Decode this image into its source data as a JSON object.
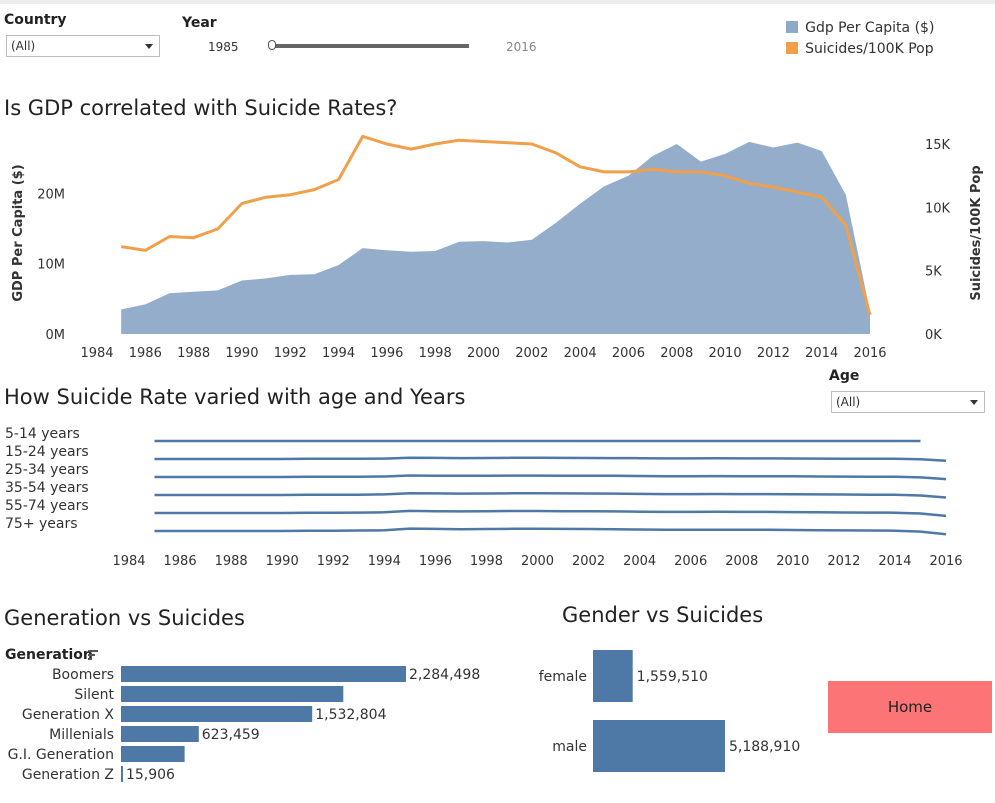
{
  "filters": {
    "country": {
      "label": "Country",
      "value": "(All)"
    },
    "year": {
      "label": "Year",
      "min_label": "1985",
      "max_label": "2016"
    },
    "age": {
      "label": "Age",
      "value": "(All)"
    }
  },
  "legend": [
    {
      "label": "Gdp Per Capita ($)",
      "color": "#8ea9c8"
    },
    {
      "label": "Suicides/100K Pop",
      "color": "#f0a04b"
    }
  ],
  "titles": {
    "gdp_chart": "Is GDP correlated with Suicide Rates?",
    "age_chart": "How Suicide Rate varied with age and Years",
    "generation_chart": "Generation vs Suicides",
    "gender_chart": "Gender vs Suicides"
  },
  "home_button": "Home",
  "chart_data": [
    {
      "type": "area",
      "title": "Is GDP correlated with Suicide Rates?",
      "x": [
        1985,
        1986,
        1987,
        1988,
        1989,
        1990,
        1991,
        1992,
        1993,
        1994,
        1995,
        1996,
        1997,
        1998,
        1999,
        2000,
        2001,
        2002,
        2003,
        2004,
        2005,
        2006,
        2007,
        2008,
        2009,
        2010,
        2011,
        2012,
        2013,
        2014,
        2015,
        2016
      ],
      "xticks": [
        "1984",
        "1986",
        "1988",
        "1990",
        "1992",
        "1994",
        "1996",
        "1998",
        "2000",
        "2002",
        "2004",
        "2006",
        "2008",
        "2010",
        "2012",
        "2014",
        "2016"
      ],
      "xlim": [
        1984,
        2016
      ],
      "ylabel": "GDP Per Capita ($)",
      "ylabel_right": "Suicides/100K Pop",
      "ylim": [
        0,
        27000000
      ],
      "ylim_right": [
        0,
        15000
      ],
      "yticks_left": [
        {
          "v": 0,
          "label": "0M"
        },
        {
          "v": 10000000,
          "label": "10M"
        },
        {
          "v": 20000000,
          "label": "20M"
        }
      ],
      "yticks_right": [
        {
          "v": 0,
          "label": "0K"
        },
        {
          "v": 5000,
          "label": "5K"
        },
        {
          "v": 10000,
          "label": "10K"
        },
        {
          "v": 15000,
          "label": "15K"
        }
      ],
      "series": [
        {
          "name": "Gdp Per Capita ($)",
          "axis": "left",
          "kind": "area",
          "color": "#8ea9c8",
          "values": [
            3500000,
            4200000,
            5800000,
            6000000,
            6200000,
            7600000,
            7900000,
            8400000,
            8500000,
            9800000,
            12200000,
            11900000,
            11700000,
            11800000,
            13100000,
            13200000,
            13000000,
            13400000,
            15800000,
            18500000,
            21000000,
            22500000,
            25300000,
            27000000,
            24500000,
            25600000,
            27300000,
            26500000,
            27200000,
            26000000,
            19800000,
            3200000
          ]
        },
        {
          "name": "Suicides/100K Pop",
          "axis": "right",
          "kind": "line",
          "color": "#f0a04b",
          "values": [
            6900,
            6600,
            7700,
            7600,
            8300,
            10300,
            10800,
            11000,
            11400,
            12200,
            15600,
            15000,
            14600,
            15000,
            15300,
            15200,
            15100,
            15000,
            14300,
            13200,
            12800,
            12800,
            13000,
            12800,
            12800,
            12500,
            11900,
            11600,
            11200,
            10800,
            8600,
            1500
          ]
        }
      ]
    },
    {
      "type": "line",
      "title": "How Suicide Rate varied with age and Years",
      "xticks": [
        "1984",
        "1986",
        "1988",
        "1990",
        "1992",
        "1994",
        "1996",
        "1998",
        "2000",
        "2002",
        "2004",
        "2006",
        "2008",
        "2010",
        "2012",
        "2014",
        "2016"
      ],
      "xlim": [
        1984,
        2016
      ],
      "series": [
        {
          "name": "5-14 years",
          "last_year": 2015
        },
        {
          "name": "15-24 years",
          "last_year": 2016
        },
        {
          "name": "25-34 years",
          "last_year": 2016
        },
        {
          "name": "35-54 years",
          "last_year": 2016
        },
        {
          "name": "55-74 years",
          "last_year": 2016
        },
        {
          "name": "75+ years",
          "last_year": 2016
        }
      ]
    },
    {
      "type": "bar",
      "title": "Generation vs Suicides",
      "axis_label": "Generation",
      "categories": [
        "Boomers",
        "Silent",
        "Generation X",
        "Millenials",
        "G.I. Generation",
        "Generation Z"
      ],
      "values": [
        2284498,
        1781744,
        1532804,
        623459,
        510009,
        15906
      ],
      "value_labels": [
        "2,284,498",
        "",
        "1,532,804",
        "623,459",
        "",
        "15,906"
      ],
      "color": "#4e79a7"
    },
    {
      "type": "bar",
      "title": "Gender vs Suicides",
      "categories": [
        "female",
        "male"
      ],
      "values": [
        1559510,
        5188910
      ],
      "value_labels": [
        "1,559,510",
        "5,188,910"
      ],
      "color": "#4e79a7"
    }
  ]
}
